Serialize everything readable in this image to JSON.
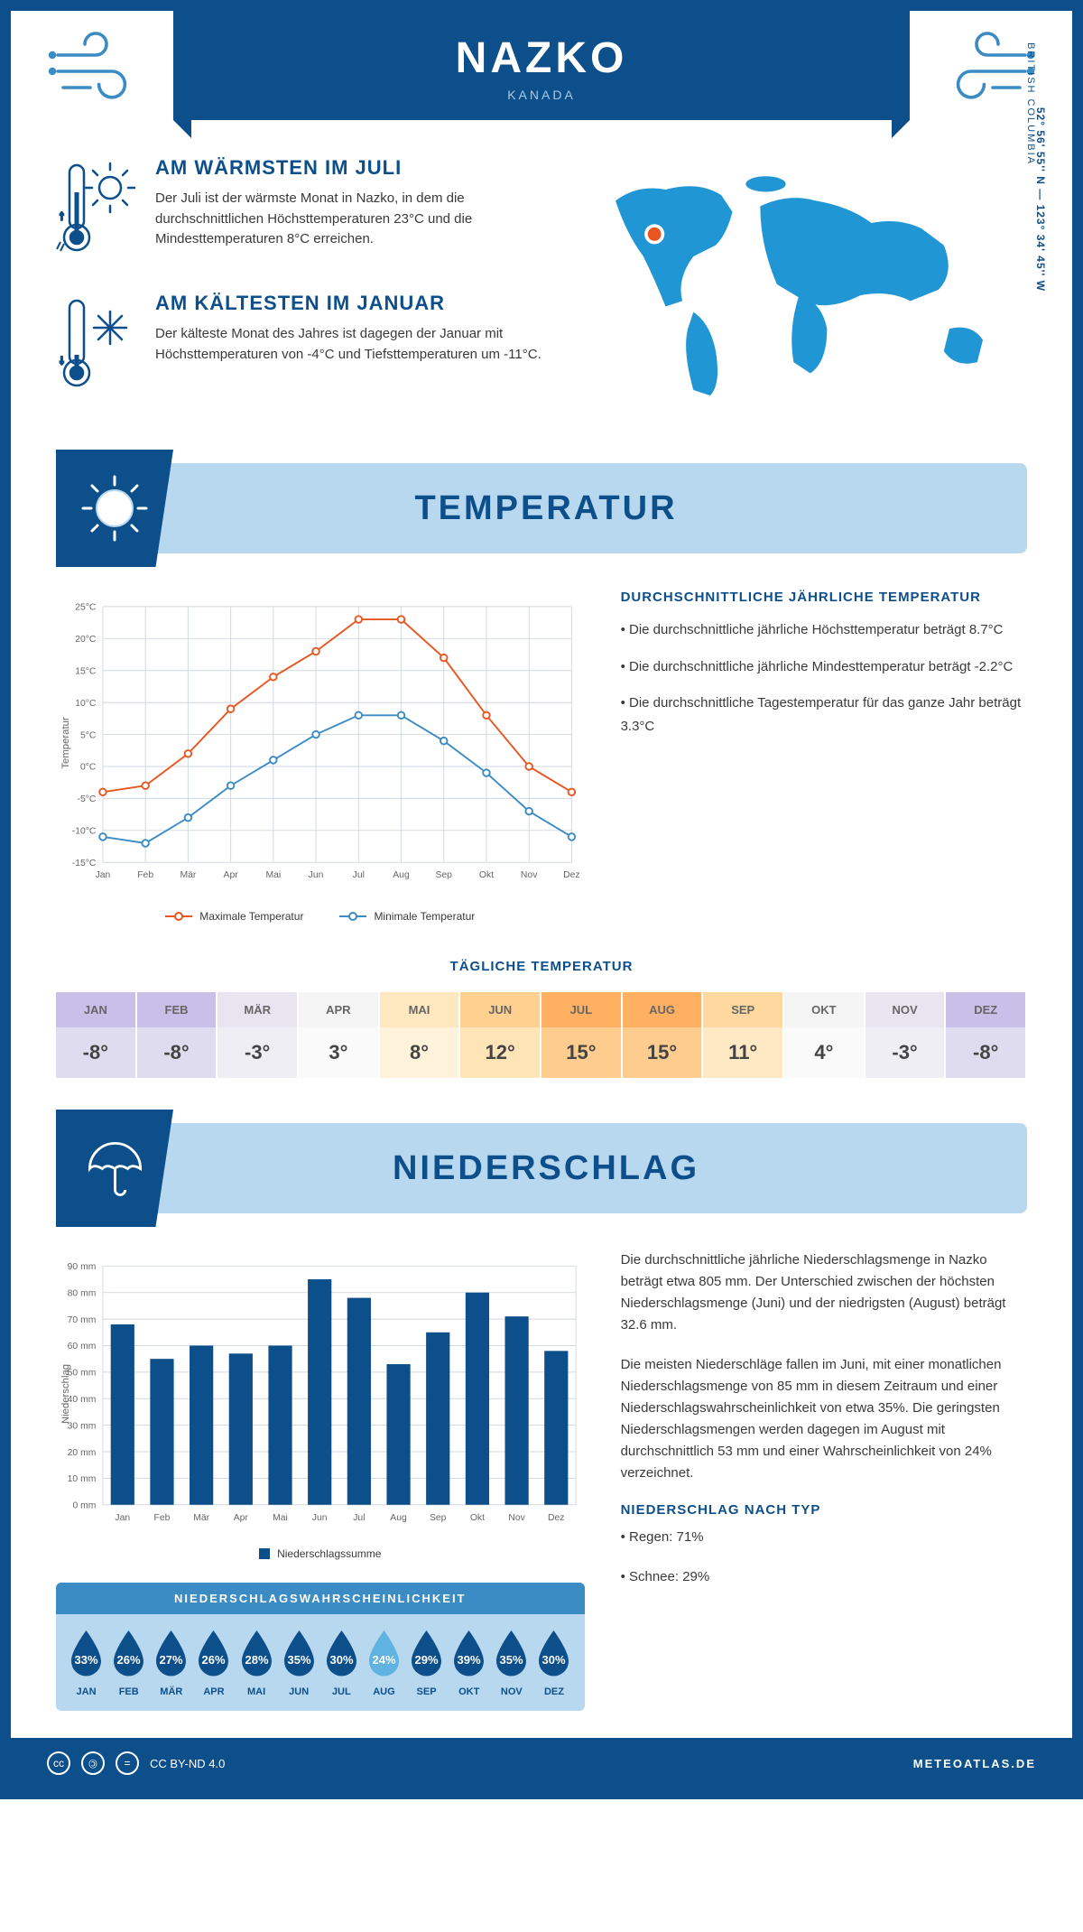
{
  "header": {
    "title": "NAZKO",
    "subtitle": "KANADA",
    "coordinates": "52° 56' 55'' N — 123° 34' 45'' W",
    "region": "BRITISH COLUMBIA"
  },
  "colors": {
    "primary": "#0d4f8b",
    "light_blue": "#b8d8f0",
    "mid_blue": "#3b8bc4",
    "bright_blue": "#2196d4",
    "orange": "#e8551f",
    "grid": "#d0d8e0",
    "text": "#3a3a3a"
  },
  "warmest": {
    "title": "AM WÄRMSTEN IM JULI",
    "text": "Der Juli ist der wärmste Monat in Nazko, in dem die durchschnittlichen Höchsttemperaturen 23°C und die Mindesttemperaturen 8°C erreichen."
  },
  "coldest": {
    "title": "AM KÄLTESTEN IM JANUAR",
    "text": "Der kälteste Monat des Jahres ist dagegen der Januar mit Höchsttemperaturen von -4°C und Tiefsttemperaturen um -11°C."
  },
  "temperature": {
    "section_title": "TEMPERATUR",
    "info_title": "DURCHSCHNITTLICHE JÄHRLICHE TEMPERATUR",
    "bullets": [
      "• Die durchschnittliche jährliche Höchsttemperatur beträgt 8.7°C",
      "• Die durchschnittliche jährliche Mindesttemperatur beträgt -2.2°C",
      "• Die durchschnittliche Tagestemperatur für das ganze Jahr beträgt 3.3°C"
    ],
    "chart": {
      "type": "line",
      "months": [
        "Jan",
        "Feb",
        "Mär",
        "Apr",
        "Mai",
        "Jun",
        "Jul",
        "Aug",
        "Sep",
        "Okt",
        "Nov",
        "Dez"
      ],
      "max_values": [
        -4,
        -3,
        2,
        9,
        14,
        18,
        23,
        23,
        17,
        8,
        0,
        -4
      ],
      "min_values": [
        -11,
        -12,
        -8,
        -3,
        1,
        5,
        8,
        8,
        4,
        -1,
        -7,
        -11
      ],
      "max_color": "#e8551f",
      "min_color": "#3b8bc4",
      "ylim": [
        -15,
        25
      ],
      "ytick_step": 5,
      "ylabel": "Temperatur",
      "legend_max": "Maximale Temperatur",
      "legend_min": "Minimale Temperatur",
      "line_width": 2,
      "marker_size": 4,
      "background_color": "#ffffff",
      "grid_color": "#d0d8e0"
    },
    "daily": {
      "title": "TÄGLICHE TEMPERATUR",
      "months": [
        "JAN",
        "FEB",
        "MÄR",
        "APR",
        "MAI",
        "JUN",
        "JUL",
        "AUG",
        "SEP",
        "OKT",
        "NOV",
        "DEZ"
      ],
      "values": [
        "-8°",
        "-8°",
        "-3°",
        "3°",
        "8°",
        "12°",
        "15°",
        "15°",
        "11°",
        "4°",
        "-3°",
        "-8°"
      ],
      "header_colors": [
        "#c8c0e8",
        "#c8c0e8",
        "#e8e4f0",
        "#f5f5f5",
        "#ffe8c0",
        "#ffd090",
        "#ffb060",
        "#ffb060",
        "#ffd8a0",
        "#f5f5f5",
        "#e8e4f0",
        "#c8c0e8"
      ],
      "value_colors": [
        "#e0dcf0",
        "#e0dcf0",
        "#f0eef5",
        "#fafafa",
        "#fff2da",
        "#ffe4b8",
        "#ffcc90",
        "#ffcc90",
        "#ffe8c4",
        "#fafafa",
        "#f0eef5",
        "#e0dcf0"
      ]
    }
  },
  "precipitation": {
    "section_title": "NIEDERSCHLAG",
    "chart": {
      "type": "bar",
      "months": [
        "Jan",
        "Feb",
        "Mär",
        "Apr",
        "Mai",
        "Jun",
        "Jul",
        "Aug",
        "Sep",
        "Okt",
        "Nov",
        "Dez"
      ],
      "values": [
        68,
        55,
        60,
        57,
        60,
        85,
        78,
        53,
        65,
        80,
        71,
        58
      ],
      "bar_color": "#0d4f8b",
      "ylim": [
        0,
        90
      ],
      "ytick_step": 10,
      "ylabel": "Niederschlag",
      "legend": "Niederschlagssumme",
      "bar_width": 0.6,
      "grid_color": "#d0d8e0"
    },
    "text1": "Die durchschnittliche jährliche Niederschlagsmenge in Nazko beträgt etwa 805 mm. Der Unterschied zwischen der höchsten Niederschlagsmenge (Juni) und der niedrigsten (August) beträgt 32.6 mm.",
    "text2": "Die meisten Niederschläge fallen im Juni, mit einer monatlichen Niederschlagsmenge von 85 mm in diesem Zeitraum und einer Niederschlagswahrscheinlichkeit von etwa 35%. Die geringsten Niederschlagsmengen werden dagegen im August mit durchschnittlich 53 mm und einer Wahrscheinlichkeit von 24% verzeichnet.",
    "by_type_title": "NIEDERSCHLAG NACH TYP",
    "by_type": [
      "• Regen: 71%",
      "• Schnee: 29%"
    ],
    "probability": {
      "title": "NIEDERSCHLAGSWAHRSCHEINLICHKEIT",
      "months": [
        "JAN",
        "FEB",
        "MÄR",
        "APR",
        "MAI",
        "JUN",
        "JUL",
        "AUG",
        "SEP",
        "OKT",
        "NOV",
        "DEZ"
      ],
      "percents": [
        "33%",
        "26%",
        "27%",
        "26%",
        "28%",
        "35%",
        "30%",
        "24%",
        "29%",
        "39%",
        "35%",
        "30%"
      ],
      "fill_dark": "#0d4f8b",
      "fill_light": "#5fb3e0",
      "min_index": 7
    }
  },
  "footer": {
    "license": "CC BY-ND 4.0",
    "site": "METEOATLAS.DE"
  }
}
